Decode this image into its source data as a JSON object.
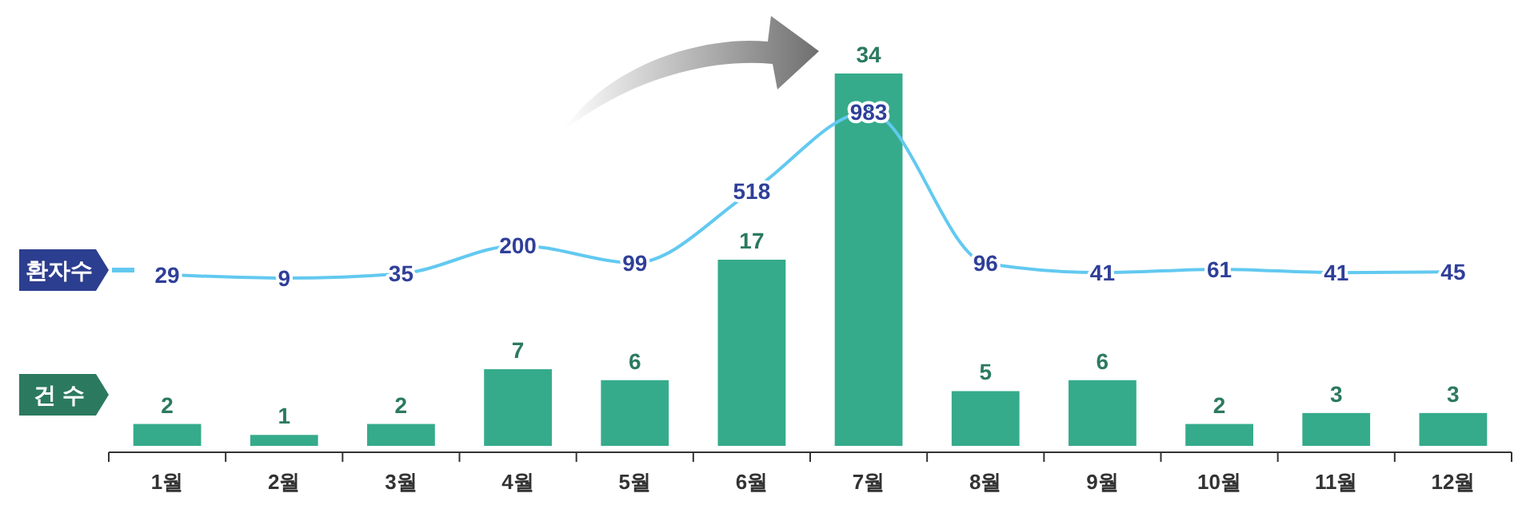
{
  "chart_data": {
    "type": "bar",
    "categories": [
      "1월",
      "2월",
      "3월",
      "4월",
      "5월",
      "6월",
      "7월",
      "8월",
      "9월",
      "10월",
      "11월",
      "12월"
    ],
    "series": [
      {
        "name": "건 수",
        "color": "#35ab8b",
        "values": [
          2,
          1,
          2,
          7,
          6,
          17,
          34,
          5,
          6,
          2,
          3,
          3
        ]
      },
      {
        "name": "환자수",
        "type": "line",
        "axis": "y2",
        "color": "#62c9f0",
        "values": [
          29,
          9,
          35,
          200,
          99,
          518,
          983,
          96,
          41,
          61,
          41,
          45
        ]
      }
    ],
    "data_labels": true,
    "legend": "left",
    "tick_labels": "x",
    "line_style": "solid"
  }
}
